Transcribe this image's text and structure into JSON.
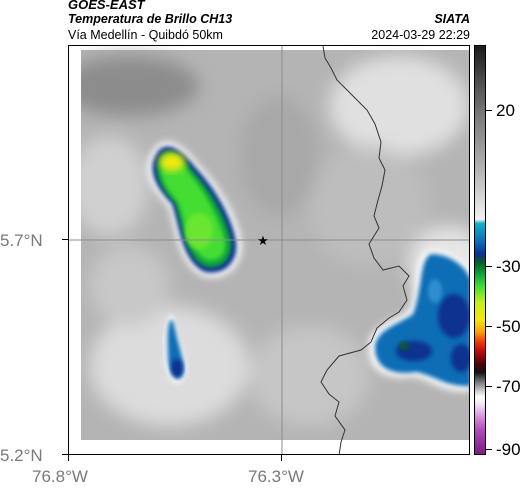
{
  "header": {
    "title_line1": "GOES-EAST",
    "title_line2": "Temperatura de Brillo CH13",
    "subtitle": "Vía Medellín - Quibdó 50km",
    "organization": "SIATA",
    "datetime": "2024-03-29 22:29"
  },
  "map": {
    "lat_labels": [
      "5.7°N",
      "5.2°N"
    ],
    "lon_labels": [
      "76.8°W",
      "76.3°W"
    ],
    "marker_icon": "star-icon",
    "boundary_color": "#333333",
    "gridline_color": "#8c8c8c"
  },
  "colorbar": {
    "labels": [
      "20",
      "-30",
      "-50",
      "-70",
      "-90"
    ]
  }
}
